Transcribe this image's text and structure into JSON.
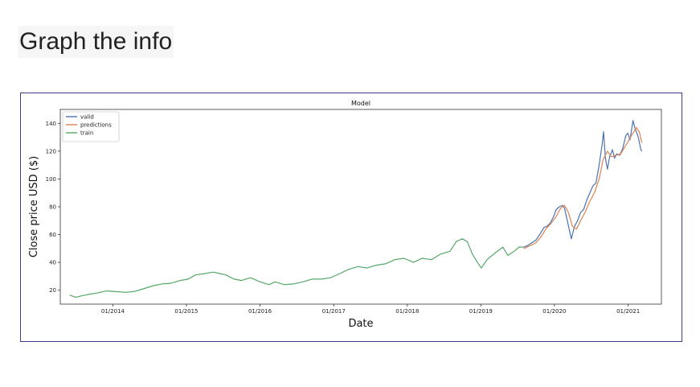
{
  "heading": "Graph the info",
  "chart_data": {
    "type": "line",
    "title": "Model",
    "xlabel": "Date",
    "ylabel": "Close price USD ($)",
    "xticks": [
      "01/2014",
      "01/2015",
      "01/2016",
      "01/2017",
      "01/2018",
      "01/2019",
      "01/2020",
      "01/2021"
    ],
    "yticks": [
      20,
      40,
      60,
      80,
      100,
      120,
      140
    ],
    "xlim": [
      "2013-04-15",
      "2021-06-15"
    ],
    "ylim": [
      10,
      150
    ],
    "legend": "top-left",
    "grid": false,
    "series": [
      {
        "name": "valid",
        "color": "#4c72b0",
        "points": [
          [
            "2019-08-01",
            51
          ],
          [
            "2019-08-20",
            52
          ],
          [
            "2019-09-10",
            54
          ],
          [
            "2019-10-01",
            56
          ],
          [
            "2019-10-20",
            60
          ],
          [
            "2019-11-10",
            65
          ],
          [
            "2019-11-25",
            66
          ],
          [
            "2019-12-10",
            68
          ],
          [
            "2019-12-25",
            72
          ],
          [
            "2020-01-10",
            78
          ],
          [
            "2020-01-25",
            80
          ],
          [
            "2020-02-10",
            81
          ],
          [
            "2020-02-20",
            79
          ],
          [
            "2020-03-05",
            70
          ],
          [
            "2020-03-20",
            60
          ],
          [
            "2020-03-25",
            57
          ],
          [
            "2020-04-10",
            66
          ],
          [
            "2020-04-25",
            70
          ],
          [
            "2020-05-10",
            76
          ],
          [
            "2020-05-25",
            78
          ],
          [
            "2020-06-10",
            85
          ],
          [
            "2020-06-25",
            90
          ],
          [
            "2020-07-10",
            95
          ],
          [
            "2020-07-25",
            97
          ],
          [
            "2020-08-10",
            110
          ],
          [
            "2020-08-25",
            125
          ],
          [
            "2020-09-01",
            134
          ],
          [
            "2020-09-10",
            115
          ],
          [
            "2020-09-20",
            107
          ],
          [
            "2020-10-01",
            116
          ],
          [
            "2020-10-15",
            121
          ],
          [
            "2020-10-25",
            115
          ],
          [
            "2020-11-05",
            118
          ],
          [
            "2020-11-20",
            117
          ],
          [
            "2020-12-05",
            122
          ],
          [
            "2020-12-20",
            131
          ],
          [
            "2020-12-30",
            133
          ],
          [
            "2021-01-10",
            128
          ],
          [
            "2021-01-25",
            142
          ],
          [
            "2021-02-05",
            136
          ],
          [
            "2021-02-20",
            130
          ],
          [
            "2021-03-05",
            121
          ],
          [
            "2021-03-10",
            120
          ]
        ]
      },
      {
        "name": "predictions",
        "color": "#dd8452",
        "points": [
          [
            "2019-08-01",
            50
          ],
          [
            "2019-09-01",
            52
          ],
          [
            "2019-10-01",
            54
          ],
          [
            "2019-10-25",
            58
          ],
          [
            "2019-11-20",
            64
          ],
          [
            "2019-12-15",
            68
          ],
          [
            "2020-01-10",
            73
          ],
          [
            "2020-02-01",
            79
          ],
          [
            "2020-02-20",
            81
          ],
          [
            "2020-03-10",
            76
          ],
          [
            "2020-03-30",
            66
          ],
          [
            "2020-04-20",
            64
          ],
          [
            "2020-05-10",
            70
          ],
          [
            "2020-06-01",
            76
          ],
          [
            "2020-06-25",
            84
          ],
          [
            "2020-07-20",
            91
          ],
          [
            "2020-08-10",
            100
          ],
          [
            "2020-08-30",
            114
          ],
          [
            "2020-09-20",
            120
          ],
          [
            "2020-10-10",
            116
          ],
          [
            "2020-11-01",
            117
          ],
          [
            "2020-11-25",
            118
          ],
          [
            "2020-12-15",
            123
          ],
          [
            "2021-01-05",
            128
          ],
          [
            "2021-01-25",
            133
          ],
          [
            "2021-02-10",
            137
          ],
          [
            "2021-02-25",
            134
          ],
          [
            "2021-03-10",
            126
          ]
        ]
      },
      {
        "name": "train",
        "color": "#55a868",
        "points": [
          [
            "2013-06-01",
            16.5
          ],
          [
            "2013-07-01",
            15
          ],
          [
            "2013-08-01",
            16
          ],
          [
            "2013-09-01",
            17
          ],
          [
            "2013-10-15",
            18
          ],
          [
            "2013-12-01",
            19.5
          ],
          [
            "2014-01-15",
            19
          ],
          [
            "2014-03-01",
            18.5
          ],
          [
            "2014-04-15",
            19
          ],
          [
            "2014-06-01",
            21
          ],
          [
            "2014-07-15",
            23
          ],
          [
            "2014-09-01",
            24.5
          ],
          [
            "2014-10-15",
            25
          ],
          [
            "2014-12-01",
            27
          ],
          [
            "2015-01-10",
            28
          ],
          [
            "2015-02-15",
            31
          ],
          [
            "2015-04-01",
            32
          ],
          [
            "2015-05-15",
            33
          ],
          [
            "2015-06-15",
            32
          ],
          [
            "2015-07-15",
            31
          ],
          [
            "2015-08-25",
            28
          ],
          [
            "2015-10-01",
            27
          ],
          [
            "2015-11-15",
            29
          ],
          [
            "2016-01-01",
            26
          ],
          [
            "2016-02-15",
            24
          ],
          [
            "2016-03-15",
            26
          ],
          [
            "2016-05-01",
            24
          ],
          [
            "2016-06-15",
            24.5
          ],
          [
            "2016-08-01",
            26
          ],
          [
            "2016-09-15",
            28
          ],
          [
            "2016-11-01",
            28
          ],
          [
            "2016-12-15",
            29
          ],
          [
            "2017-02-01",
            32
          ],
          [
            "2017-03-15",
            35
          ],
          [
            "2017-05-01",
            37
          ],
          [
            "2017-06-15",
            36
          ],
          [
            "2017-08-01",
            38
          ],
          [
            "2017-09-15",
            39
          ],
          [
            "2017-11-01",
            42
          ],
          [
            "2017-12-15",
            43
          ],
          [
            "2018-02-01",
            40
          ],
          [
            "2018-03-15",
            43
          ],
          [
            "2018-05-01",
            42
          ],
          [
            "2018-06-15",
            46
          ],
          [
            "2018-08-01",
            48
          ],
          [
            "2018-09-01",
            55
          ],
          [
            "2018-10-01",
            57
          ],
          [
            "2018-10-25",
            55
          ],
          [
            "2018-11-20",
            46
          ],
          [
            "2018-12-15",
            40
          ],
          [
            "2019-01-03",
            36
          ],
          [
            "2019-02-01",
            42
          ],
          [
            "2019-03-15",
            47
          ],
          [
            "2019-04-20",
            51
          ],
          [
            "2019-05-15",
            45
          ],
          [
            "2019-06-15",
            48
          ],
          [
            "2019-07-10",
            51
          ],
          [
            "2019-08-01",
            51
          ]
        ]
      }
    ]
  }
}
